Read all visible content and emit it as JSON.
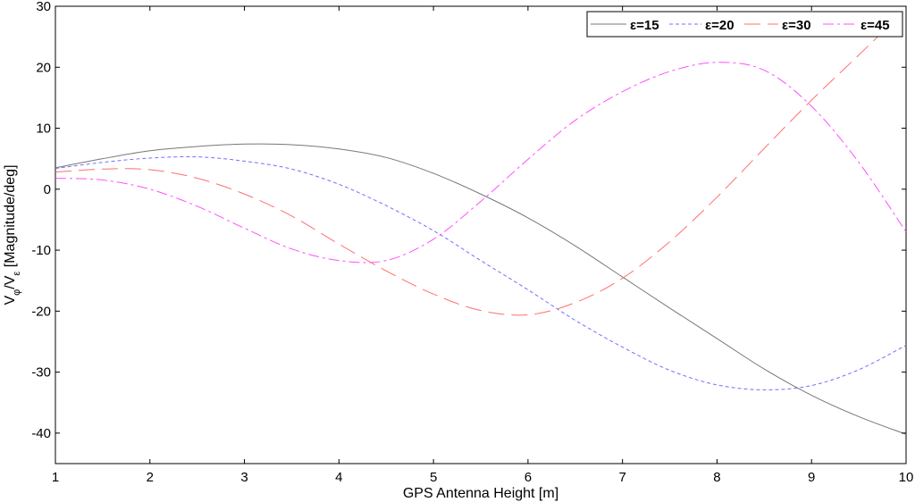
{
  "chart_data": {
    "type": "line",
    "xlabel": "GPS Antenna Height [m]",
    "ylabel_main": "V",
    "ylabel_sub1": "φ",
    "ylabel_mid": "/V",
    "ylabel_sub2": "ε",
    "ylabel_tail": " [Magnitude/deg]",
    "xlim": [
      1,
      10
    ],
    "ylim": [
      -45,
      30
    ],
    "xticks": [
      "1",
      "2",
      "3",
      "4",
      "5",
      "6",
      "7",
      "8",
      "9",
      "10"
    ],
    "yticks": [
      "30",
      "20",
      "10",
      "0",
      "-10",
      "-20",
      "-30",
      "-40"
    ],
    "grid": false,
    "legend_position": "top-right",
    "x": [
      1.0,
      1.5,
      2.0,
      2.5,
      3.0,
      3.5,
      4.0,
      4.5,
      5.0,
      5.5,
      6.0,
      6.5,
      7.0,
      7.5,
      8.0,
      8.5,
      9.0,
      9.5,
      10.0
    ],
    "series": [
      {
        "name": "ε=15",
        "color": "#777777",
        "dash": "",
        "values": [
          3.5,
          5.0,
          6.3,
          7.0,
          7.4,
          7.3,
          6.6,
          5.2,
          2.6,
          -0.8,
          -4.7,
          -9.3,
          -14.4,
          -19.5,
          -24.5,
          -29.5,
          -33.8,
          -37.3,
          -40.2
        ]
      },
      {
        "name": "ε=20",
        "color": "#7070ff",
        "dash": "4,3",
        "values": [
          3.4,
          4.4,
          5.1,
          5.3,
          4.6,
          3.3,
          0.8,
          -2.7,
          -6.8,
          -11.7,
          -16.5,
          -21.5,
          -25.9,
          -29.7,
          -32.1,
          -32.9,
          -32.2,
          -29.6,
          -25.6
        ]
      },
      {
        "name": "ε=30",
        "color": "#ff6f6f",
        "dash": "18,8",
        "values": [
          2.8,
          3.3,
          3.2,
          1.8,
          -0.8,
          -4.4,
          -9.0,
          -13.4,
          -17.2,
          -19.9,
          -20.6,
          -18.6,
          -14.6,
          -8.6,
          -1.3,
          6.7,
          14.6,
          22.0,
          29.5
        ]
      },
      {
        "name": "ε=45",
        "color": "#ff4fff",
        "dash": "12,4,3,4",
        "values": [
          1.8,
          1.5,
          0.0,
          -2.8,
          -6.4,
          -9.8,
          -11.7,
          -11.7,
          -8.2,
          -2.0,
          4.9,
          11.3,
          16.0,
          19.3,
          20.8,
          19.5,
          13.6,
          4.4,
          -7.0
        ]
      }
    ]
  }
}
